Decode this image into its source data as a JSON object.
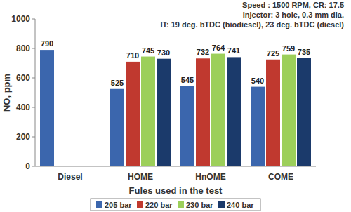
{
  "chart_data": {
    "type": "bar",
    "annotations": [
      "Speed : 1500 RPM, CR: 17.5",
      "Injector: 3 hole, 0.3 mm dia.",
      "IT: 19 deg. bTDC (biodiesel), 23 deg. bTDC (diesel)"
    ],
    "x_label": "Fules used in the test",
    "y_label": "NO, ppm",
    "categories": [
      "Diesel",
      "HOME",
      "HnOME",
      "COME"
    ],
    "series": [
      {
        "name": "205 bar",
        "color": "#3b66ad",
        "values": [
          790,
          525,
          545,
          540
        ]
      },
      {
        "name": "220 bar",
        "color": "#c0392f",
        "values": [
          null,
          710,
          732,
          725
        ]
      },
      {
        "name": "230 bar",
        "color": "#9ccf5a",
        "values": [
          null,
          745,
          764,
          759
        ]
      },
      {
        "name": "240 bar",
        "color": "#1b3a6b",
        "values": [
          null,
          730,
          741,
          735
        ]
      }
    ],
    "ylim": [
      0,
      1000
    ],
    "yticks": [
      0,
      200,
      400,
      600,
      800,
      1000
    ],
    "grid": false,
    "legend": "bottom",
    "data_labels": true
  }
}
